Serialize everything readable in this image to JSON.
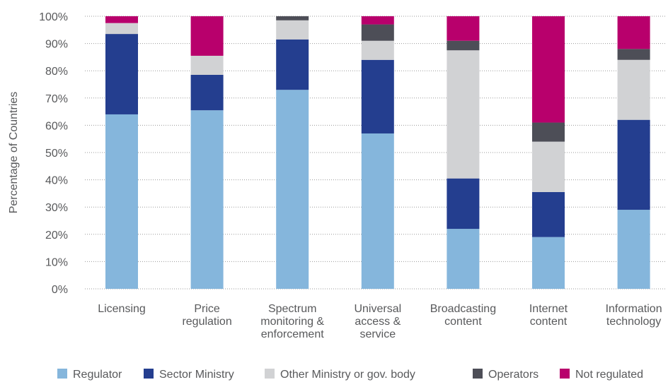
{
  "chart_data": {
    "type": "bar",
    "stacked": true,
    "ylabel": "Percentage of Countries",
    "xlabel": "",
    "ylim": [
      0,
      100
    ],
    "y_ticks": [
      "0%",
      "10%",
      "20%",
      "30%",
      "40%",
      "50%",
      "60%",
      "70%",
      "80%",
      "90%",
      "100%"
    ],
    "grid": "horizontal dotted",
    "legend_position": "bottom",
    "categories": [
      [
        "Licensing"
      ],
      [
        "Price",
        "regulation"
      ],
      [
        "Spectrum",
        "monitoring &",
        "enforcement"
      ],
      [
        "Universal",
        "access &",
        "service"
      ],
      [
        "Broadcasting",
        "content"
      ],
      [
        "Internet",
        "content"
      ],
      [
        "Information",
        "technology"
      ]
    ],
    "series": [
      {
        "name": "Regulator",
        "color": "#85b6dc",
        "values": [
          64,
          65.5,
          73,
          57,
          22,
          19,
          29
        ]
      },
      {
        "name": "Sector Ministry",
        "color": "#243e8f",
        "values": [
          29.5,
          13,
          18.5,
          27,
          18.5,
          16.5,
          33
        ]
      },
      {
        "name": "Other Ministry or gov. body",
        "color": "#d1d2d4",
        "values": [
          4,
          7,
          7,
          7,
          47,
          18.5,
          22
        ]
      },
      {
        "name": "Operators",
        "color": "#4d4e57",
        "values": [
          0,
          0,
          1.5,
          6,
          3.5,
          7,
          4
        ]
      },
      {
        "name": "Not regulated",
        "color": "#b8006c",
        "values": [
          2.5,
          14.5,
          0,
          3,
          9,
          39,
          12
        ]
      }
    ]
  }
}
